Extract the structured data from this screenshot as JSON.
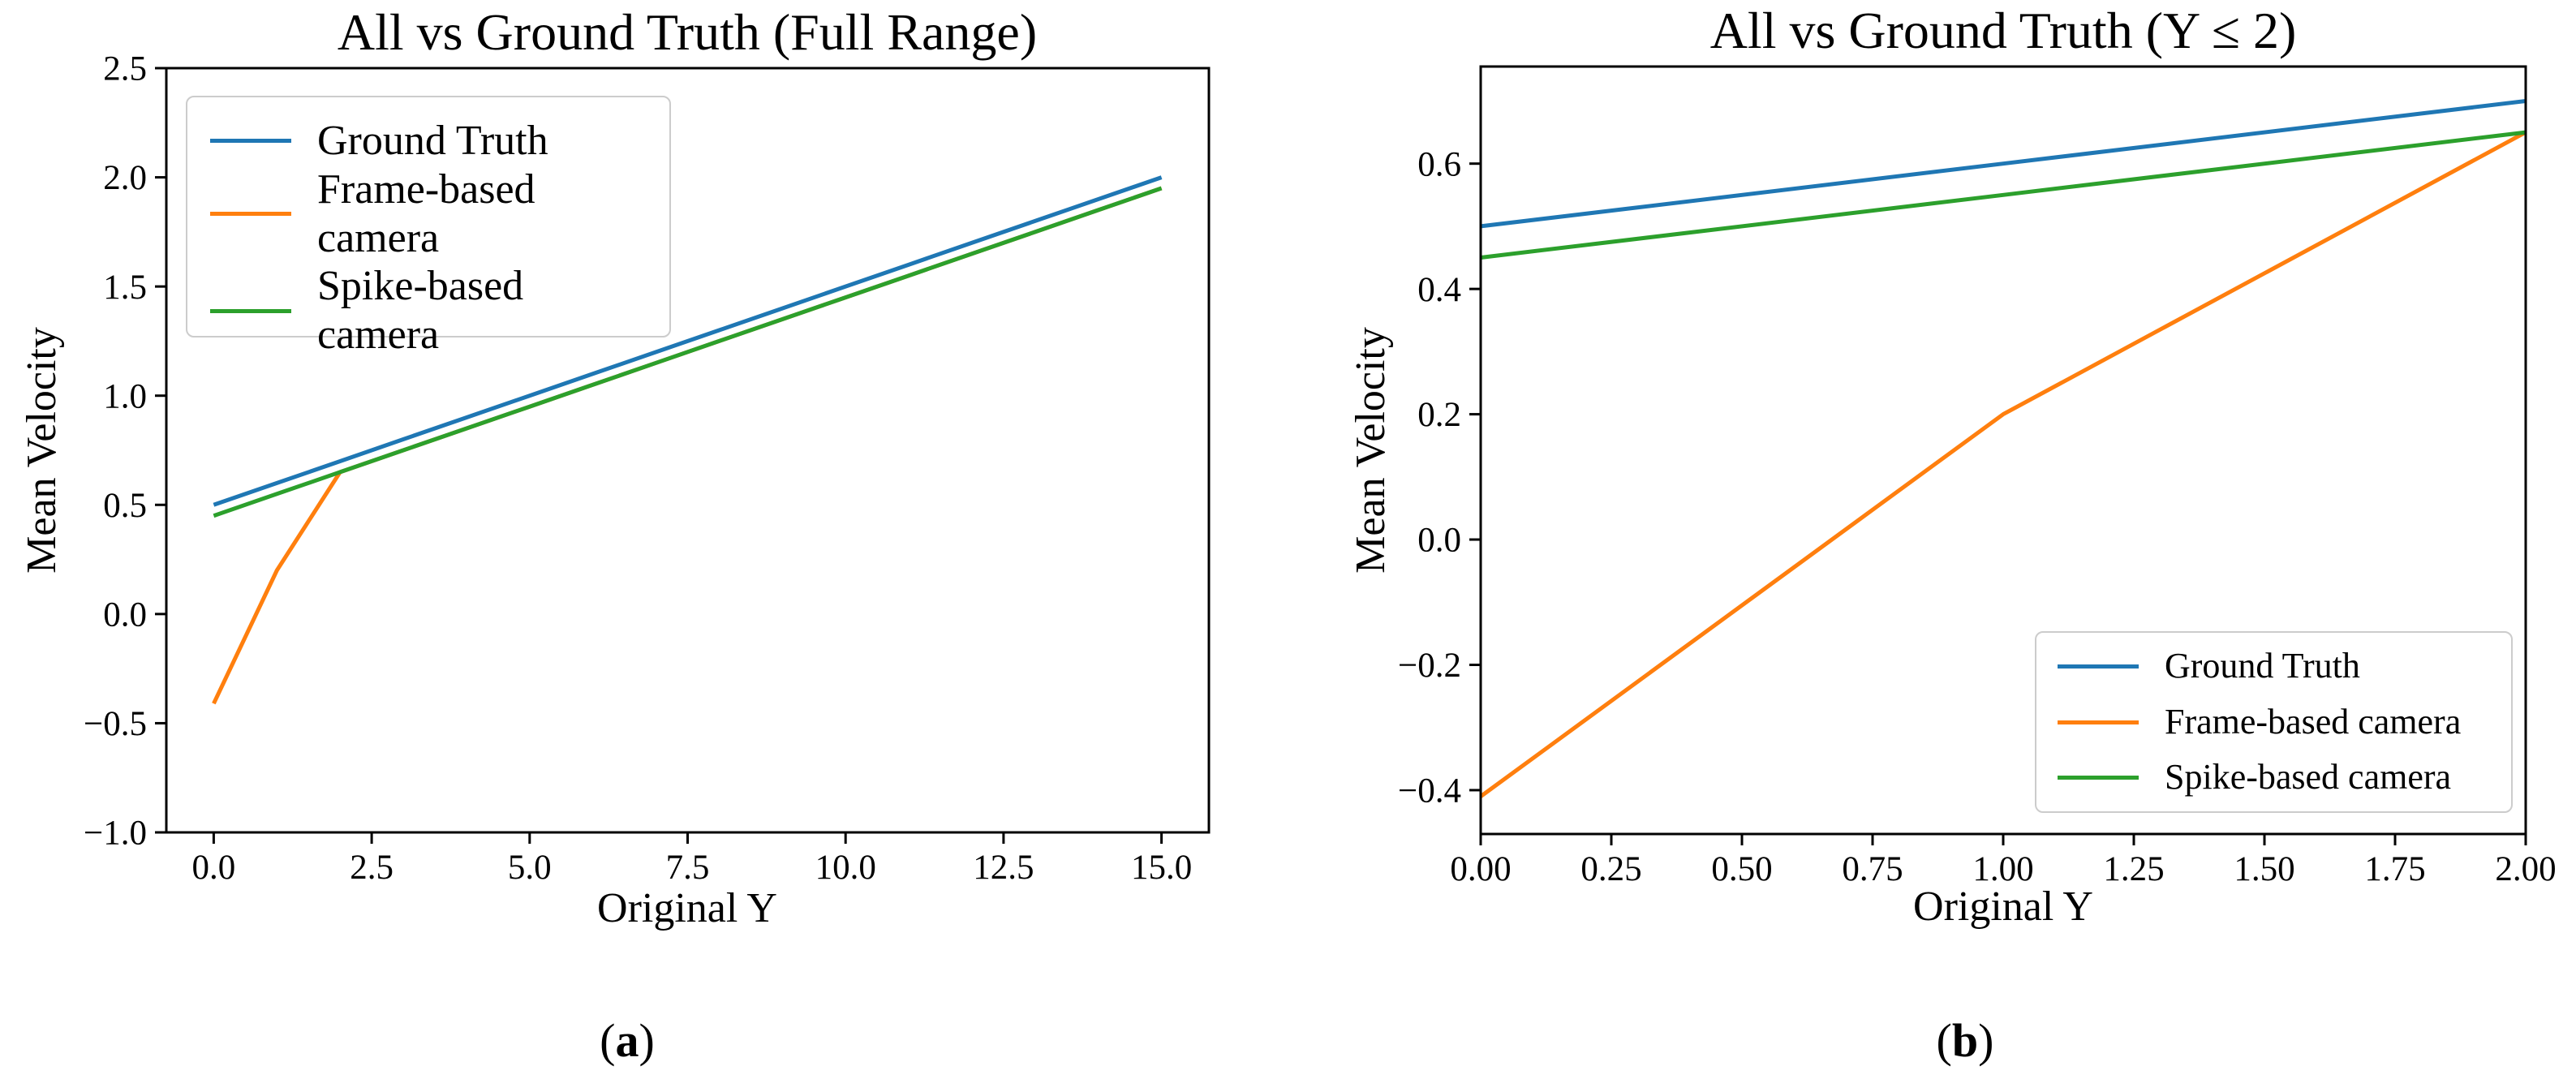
{
  "figure": {
    "background": "#ffffff"
  },
  "chart_data": [
    {
      "type": "line",
      "title": "All vs Ground Truth (Full Range)",
      "xlabel": "Original Y",
      "ylabel": "Mean Velocity",
      "caption": {
        "open": "(",
        "letter": "a",
        "close": ")"
      },
      "xlim": [
        -0.75,
        15.75
      ],
      "ylim": [
        -1.0,
        2.5
      ],
      "grid": false,
      "legend_position": "upper-left",
      "xticks": {
        "values": [
          0,
          2.5,
          5,
          7.5,
          10,
          12.5,
          15
        ],
        "labels": [
          "0.0",
          "2.5",
          "5.0",
          "7.5",
          "10.0",
          "12.5",
          "15.0"
        ]
      },
      "yticks": {
        "values": [
          -1.0,
          -0.5,
          0.0,
          0.5,
          1.0,
          1.5,
          2.0,
          2.5
        ],
        "labels": [
          "−1.0",
          "−0.5",
          "0.0",
          "0.5",
          "1.0",
          "1.5",
          "2.0",
          "2.5"
        ]
      },
      "x": [
        0,
        1,
        2,
        3,
        4,
        5,
        6,
        7,
        8,
        9,
        10,
        11,
        12,
        13,
        14,
        15
      ],
      "series": [
        {
          "name": "Ground Truth",
          "color": "#1f77b4",
          "values": [
            0.5,
            0.6,
            0.7,
            0.8,
            0.9,
            1.0,
            1.1,
            1.2,
            1.3,
            1.4,
            1.5,
            1.6,
            1.7,
            1.8,
            1.9,
            2.0
          ]
        },
        {
          "name": "Frame-based camera",
          "color": "#ff7f0e",
          "values": [
            -0.41,
            0.2,
            0.65,
            0.75,
            0.85,
            0.95,
            1.05,
            1.15,
            1.25,
            1.35,
            1.45,
            1.55,
            1.65,
            1.75,
            1.85,
            1.95
          ]
        },
        {
          "name": "Spike-based camera",
          "color": "#2ca02c",
          "values": [
            0.45,
            0.55,
            0.65,
            0.75,
            0.85,
            0.95,
            1.05,
            1.15,
            1.25,
            1.35,
            1.45,
            1.55,
            1.65,
            1.75,
            1.85,
            1.95
          ]
        }
      ]
    },
    {
      "type": "line",
      "title": "All vs Ground Truth (Y ≤ 2)",
      "xlabel": "Original Y",
      "ylabel": "Mean Velocity",
      "caption": {
        "open": "(",
        "letter": "b",
        "close": ")"
      },
      "xlim": [
        0,
        2
      ],
      "ylim": [
        -0.47,
        0.755
      ],
      "grid": false,
      "legend_position": "lower-right",
      "xticks": {
        "values": [
          0,
          0.25,
          0.5,
          0.75,
          1.0,
          1.25,
          1.5,
          1.75,
          2.0
        ],
        "labels": [
          "0.00",
          "0.25",
          "0.50",
          "0.75",
          "1.00",
          "1.25",
          "1.50",
          "1.75",
          "2.00"
        ]
      },
      "yticks": {
        "values": [
          -0.4,
          -0.2,
          0.0,
          0.2,
          0.4,
          0.6
        ],
        "labels": [
          "−0.4",
          "−0.2",
          "0.0",
          "0.2",
          "0.4",
          "0.6"
        ]
      },
      "x": [
        0,
        1,
        2
      ],
      "series": [
        {
          "name": "Ground Truth",
          "color": "#1f77b4",
          "values": [
            0.5,
            0.6,
            0.7
          ]
        },
        {
          "name": "Frame-based camera",
          "color": "#ff7f0e",
          "values": [
            -0.41,
            0.2,
            0.65
          ]
        },
        {
          "name": "Spike-based camera",
          "color": "#2ca02c",
          "values": [
            0.45,
            0.55,
            0.65
          ]
        }
      ]
    }
  ]
}
